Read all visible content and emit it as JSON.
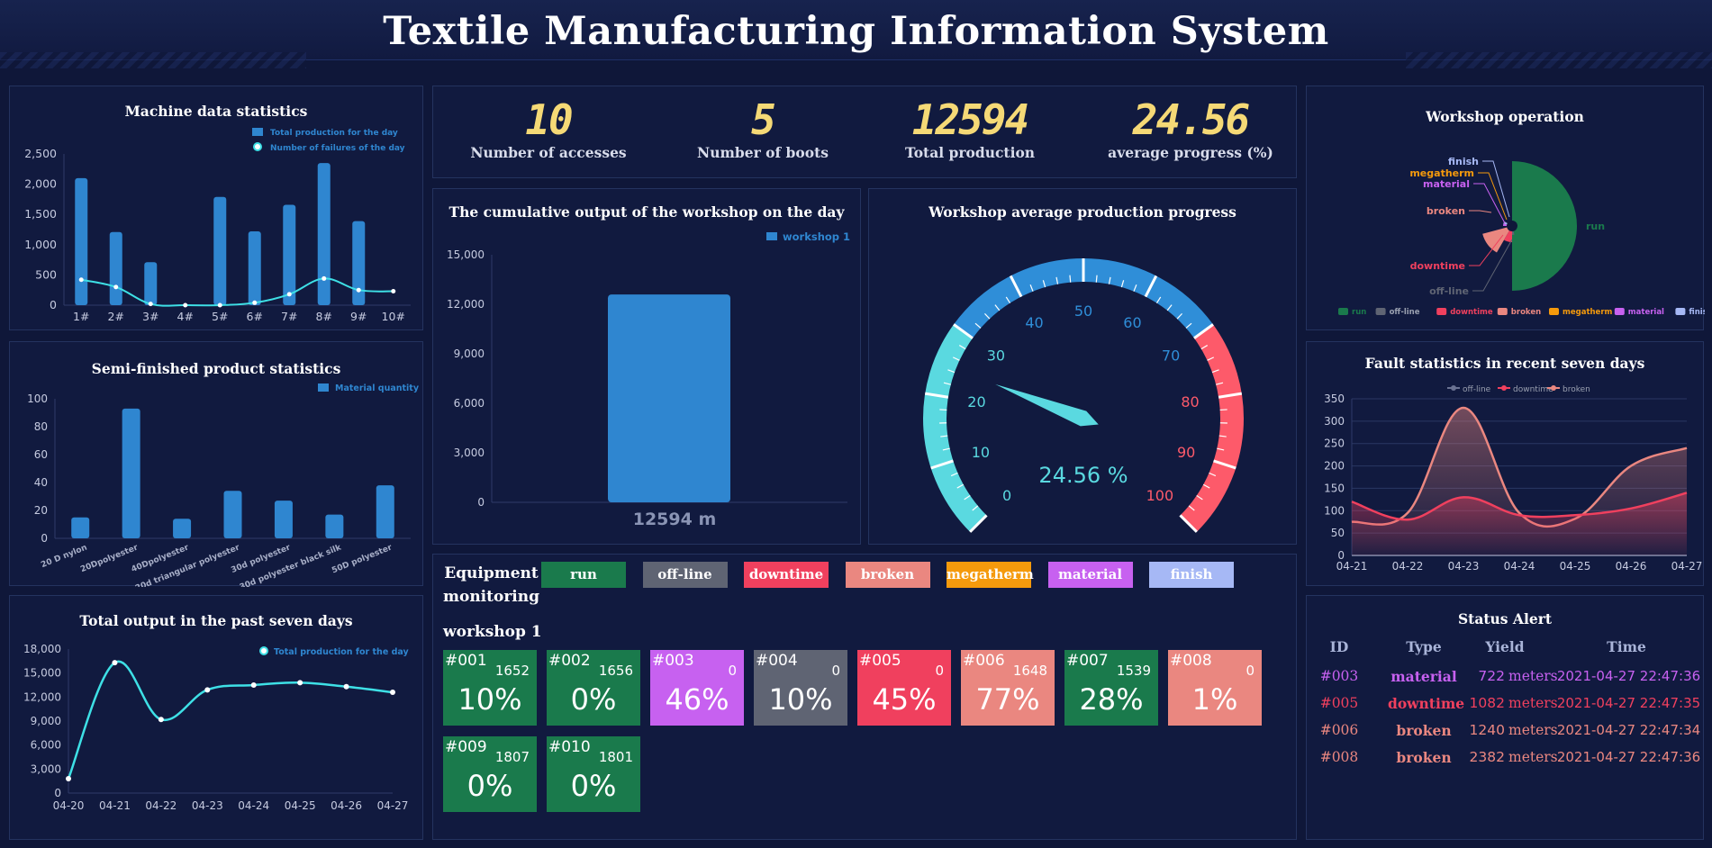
{
  "header": {
    "title": "Textile Manufacturing Information System"
  },
  "machine_panel": {
    "title": "Machine data statistics",
    "legend_bar": "Total production for the day",
    "legend_line": "Number of failures of the day"
  },
  "semi_panel": {
    "title": "Semi-finished product statistics",
    "legend": "Material quantity"
  },
  "output7_panel": {
    "title": "Total output in the past seven days",
    "legend": "Total production for the day"
  },
  "kpis": [
    {
      "value": "10",
      "label": "Number of accesses"
    },
    {
      "value": "5",
      "label": "Number of boots"
    },
    {
      "value": "12594",
      "label": "Total production"
    },
    {
      "value": "24.56",
      "label": "average progress (%)"
    }
  ],
  "cumulative_panel": {
    "title": "The cumulative output of the workshop on the day",
    "legend": "workshop 1",
    "bar_label": "12594 m"
  },
  "gauge_panel": {
    "title": "Workshop average production progress",
    "value_text": "24.56 %"
  },
  "workshop_op_panel": {
    "title": "Workshop operation"
  },
  "fault_panel": {
    "title": "Fault statistics in recent seven days"
  },
  "equipment": {
    "title_line1": "Equipment",
    "title_line2": "monitoring",
    "workshop_label": "workshop 1",
    "legend": [
      {
        "label": "run",
        "color": "#1a7a4c"
      },
      {
        "label": "off-line",
        "color": "#5f6473"
      },
      {
        "label": "downtime",
        "color": "#f0405e"
      },
      {
        "label": "broken",
        "color": "#ea8780"
      },
      {
        "label": "megatherm",
        "color": "#f59a0c"
      },
      {
        "label": "material",
        "color": "#c761f0"
      },
      {
        "label": "finish",
        "color": "#a6b8f5"
      }
    ],
    "tiles": [
      {
        "id": "#001",
        "count": "1652",
        "pct": "10%",
        "color": "#1a7a4c"
      },
      {
        "id": "#002",
        "count": "1656",
        "pct": "0%",
        "color": "#1a7a4c"
      },
      {
        "id": "#003",
        "count": "0",
        "pct": "46%",
        "color": "#c761f0"
      },
      {
        "id": "#004",
        "count": "0",
        "pct": "10%",
        "color": "#5f6473"
      },
      {
        "id": "#005",
        "count": "0",
        "pct": "45%",
        "color": "#f0405e"
      },
      {
        "id": "#006",
        "count": "1648",
        "pct": "77%",
        "color": "#ea8780"
      },
      {
        "id": "#007",
        "count": "1539",
        "pct": "28%",
        "color": "#1a7a4c"
      },
      {
        "id": "#008",
        "count": "0",
        "pct": "1%",
        "color": "#ea8780"
      },
      {
        "id": "#009",
        "count": "1807",
        "pct": "0%",
        "color": "#1a7a4c"
      },
      {
        "id": "#010",
        "count": "1801",
        "pct": "0%",
        "color": "#1a7a4c"
      }
    ]
  },
  "status_alert": {
    "title": "Status Alert",
    "columns": [
      "ID",
      "Type",
      "Yield",
      "Time"
    ],
    "rows": [
      {
        "id": "#003",
        "type": "material",
        "yield": "722",
        "unit": "meters",
        "time": "2021-04-27 22:47:36",
        "color": "#c761f0"
      },
      {
        "id": "#005",
        "type": "downtime",
        "yield": "1082",
        "unit": "meters",
        "time": "2021-04-27 22:47:35",
        "color": "#f0405e"
      },
      {
        "id": "#006",
        "type": "broken",
        "yield": "1240",
        "unit": "meters",
        "time": "2021-04-27 22:47:34",
        "color": "#ea8780"
      },
      {
        "id": "#008",
        "type": "broken",
        "yield": "2382",
        "unit": "meters",
        "time": "2021-04-27 22:47:36",
        "color": "#ea8780"
      }
    ]
  },
  "chart_data": [
    {
      "type": "bar",
      "title": "Machine data statistics",
      "categories": [
        "1#",
        "2#",
        "3#",
        "4#",
        "5#",
        "6#",
        "7#",
        "8#",
        "9#",
        "10#"
      ],
      "series": [
        {
          "name": "Total production for the day",
          "type": "bar",
          "values": [
            2100,
            1210,
            710,
            0,
            1790,
            1220,
            1660,
            2350,
            1390,
            0
          ]
        },
        {
          "name": "Number of failures of the day",
          "type": "line",
          "values": [
            420,
            300,
            20,
            0,
            0,
            40,
            180,
            440,
            250,
            230
          ]
        }
      ],
      "ylim": [
        0,
        2500
      ],
      "yticks": [
        "0",
        "500",
        "1,000",
        "1,500",
        "2,000",
        "2,500"
      ],
      "legend": "top-right"
    },
    {
      "type": "bar",
      "title": "Semi-finished product statistics",
      "categories": [
        "20 D nylon",
        "20Dpolyester",
        "40Dpolyester",
        "20d triangular polyester",
        "30d polyester",
        "30d polyester black silk",
        "50D polyester"
      ],
      "series": [
        {
          "name": "Material quantity",
          "values": [
            15,
            93,
            14,
            34,
            27,
            17,
            38
          ]
        }
      ],
      "ylim": [
        0,
        100
      ],
      "yticks": [
        "0",
        "20",
        "40",
        "60",
        "80",
        "100"
      ],
      "legend": "top-right"
    },
    {
      "type": "line",
      "title": "Total output in the past seven days",
      "categories": [
        "04-20",
        "04-21",
        "04-22",
        "04-23",
        "04-24",
        "04-25",
        "04-26",
        "04-27"
      ],
      "series": [
        {
          "name": "Total production for the day",
          "values": [
            1800,
            16300,
            9200,
            12900,
            13500,
            13800,
            13300,
            12600
          ]
        }
      ],
      "ylim": [
        0,
        18000
      ],
      "yticks": [
        "0",
        "3,000",
        "6,000",
        "9,000",
        "12,000",
        "15,000",
        "18,000"
      ],
      "legend": "top-right"
    },
    {
      "type": "bar",
      "title": "The cumulative output of the workshop on the day",
      "categories": [
        "workshop 1"
      ],
      "series": [
        {
          "name": "workshop 1",
          "values": [
            12594
          ]
        }
      ],
      "ylim": [
        0,
        15000
      ],
      "yticks": [
        "0",
        "3,000",
        "6,000",
        "9,000",
        "12,000",
        "15,000"
      ],
      "legend": "top-right"
    },
    {
      "type": "gauge",
      "title": "Workshop average production progress",
      "value": 24.56,
      "min": 0,
      "max": 100,
      "ticks": [
        "0",
        "10",
        "20",
        "30",
        "40",
        "50",
        "60",
        "70",
        "80",
        "90",
        "100"
      ]
    },
    {
      "type": "pie",
      "title": "Workshop operation",
      "series": [
        {
          "name": "run",
          "value": 60,
          "color": "#1a7a4c"
        },
        {
          "name": "off-line",
          "value": 10,
          "color": "#5f6473"
        },
        {
          "name": "downtime",
          "value": 10,
          "color": "#f0405e"
        },
        {
          "name": "broken",
          "value": 20,
          "color": "#ea8780"
        },
        {
          "name": "megatherm",
          "value": 0,
          "color": "#f59a0c"
        },
        {
          "name": "material",
          "value": 10,
          "color": "#c761f0"
        },
        {
          "name": "finish",
          "value": 0,
          "color": "#a6b8f5"
        }
      ],
      "legend": "bottom"
    },
    {
      "type": "area",
      "title": "Fault statistics in recent seven days",
      "categories": [
        "04-21",
        "04-22",
        "04-23",
        "04-24",
        "04-25",
        "04-26",
        "04-27"
      ],
      "series": [
        {
          "name": "off-line",
          "values": [
            75,
            95,
            330,
            95,
            82,
            200,
            240
          ],
          "color": "#ea8780"
        },
        {
          "name": "downtime",
          "values": [
            120,
            80,
            130,
            90,
            90,
            105,
            140
          ],
          "color": "#f0405e"
        },
        {
          "name": "broken",
          "values": [
            80,
            90,
            110,
            90,
            85,
            100,
            120
          ],
          "color": "#ea8780"
        }
      ],
      "ylim": [
        0,
        350
      ],
      "yticks": [
        "0",
        "50",
        "100",
        "150",
        "200",
        "250",
        "300",
        "350"
      ],
      "legend": "top"
    }
  ]
}
